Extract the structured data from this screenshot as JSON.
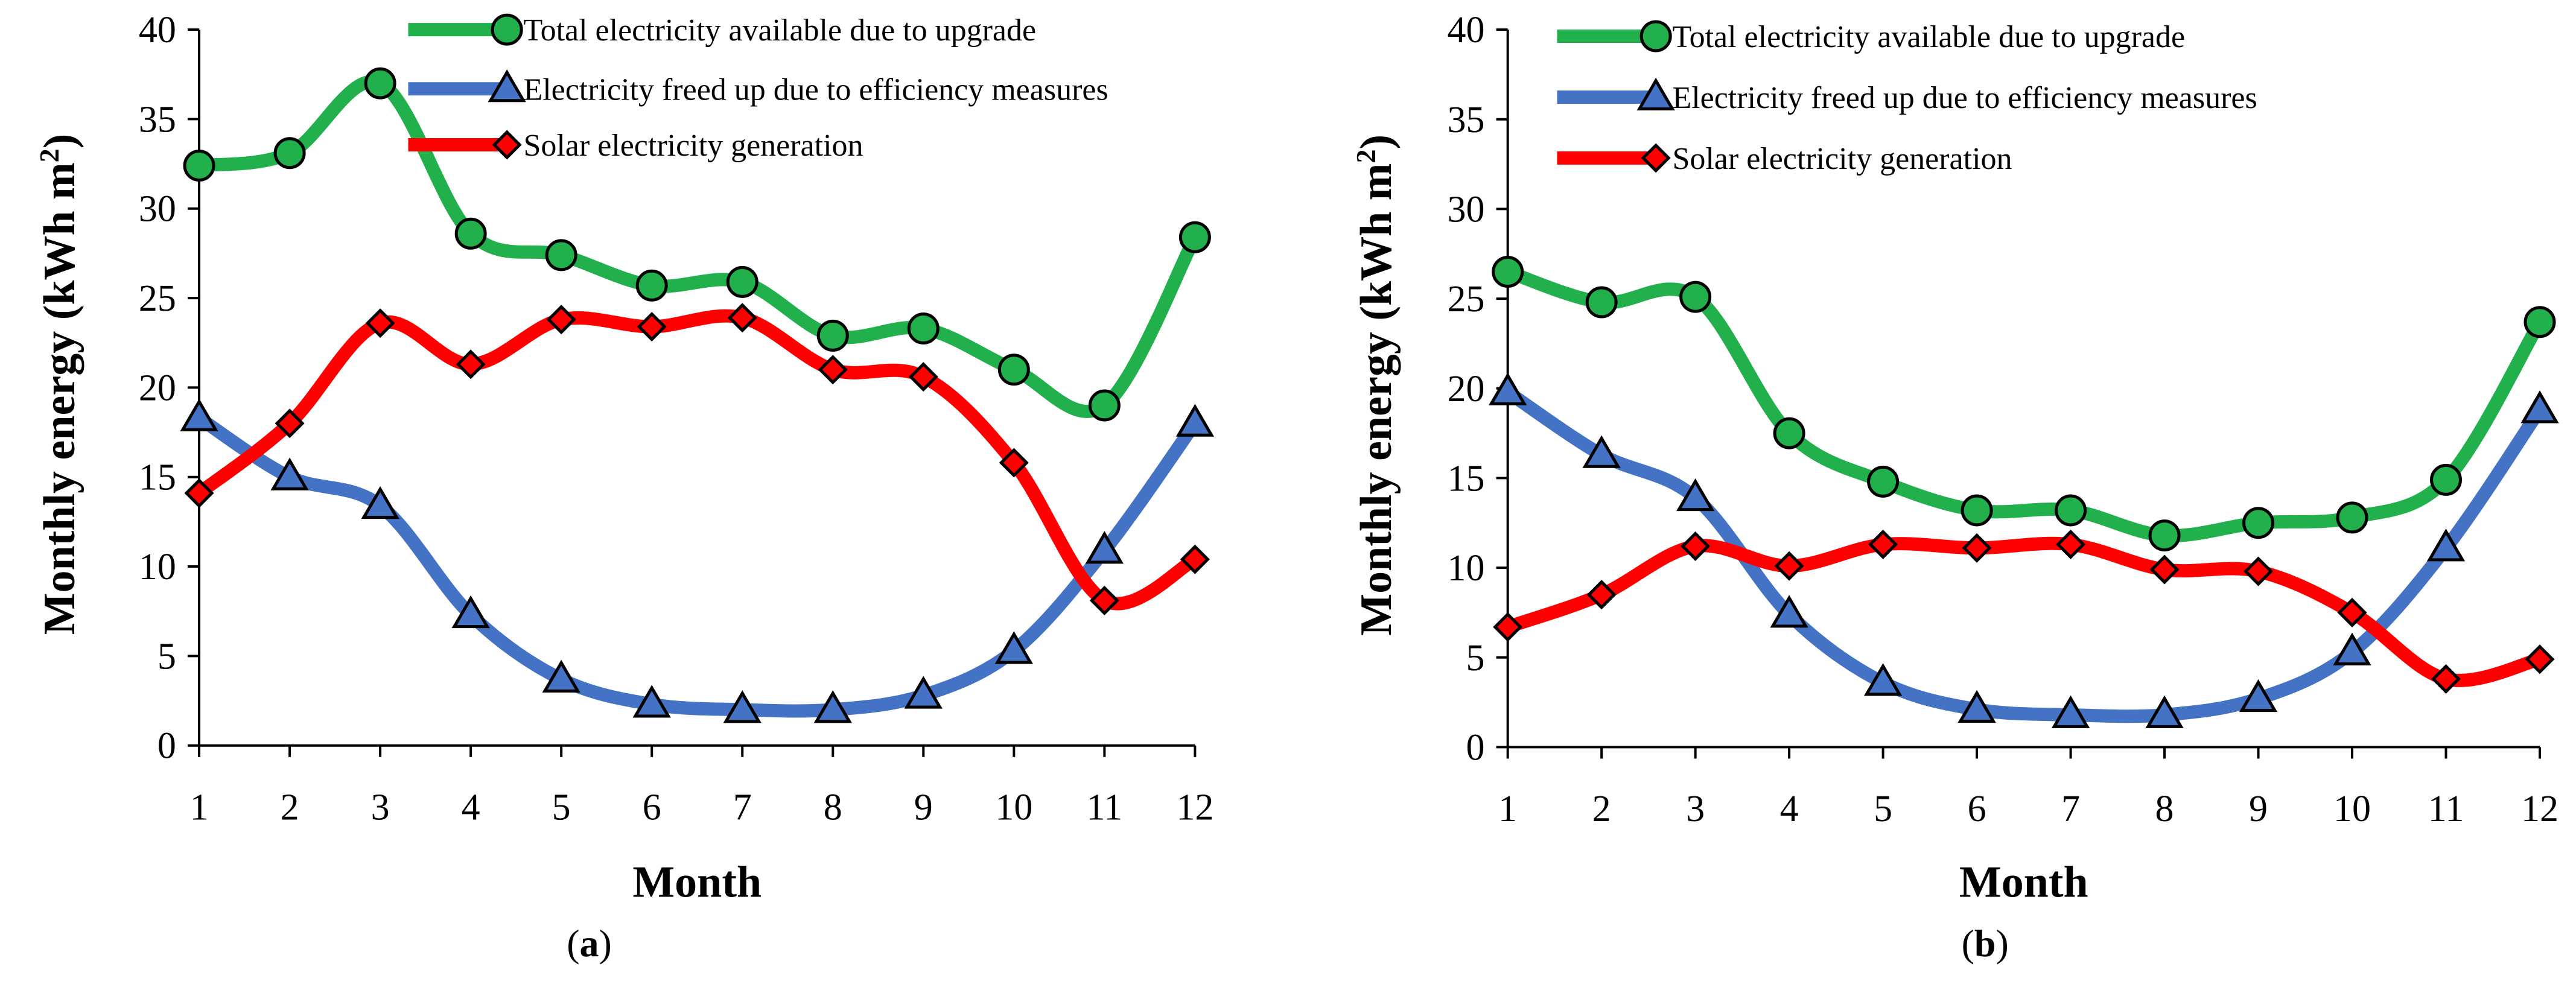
{
  "chart_data": [
    {
      "type": "line",
      "panel": "a",
      "caption_open": "(",
      "caption_letter": "a",
      "caption_close": ")",
      "xlabel": "Month",
      "ylabel": "Monthly energy (kWh m",
      "ylabel_sup": "2",
      "ylabel_close": ")",
      "ylim": [
        0,
        40
      ],
      "yticks": [
        0,
        5,
        10,
        15,
        20,
        25,
        30,
        35,
        40
      ],
      "x": [
        1,
        2,
        3,
        4,
        5,
        6,
        7,
        8,
        9,
        10,
        11,
        12
      ],
      "legend_position": "top-center",
      "series": [
        {
          "name": "Total electricity available due to upgrade",
          "color": "#21b04b",
          "marker": "circle",
          "values": [
            32.4,
            33.1,
            37.0,
            28.6,
            27.4,
            25.7,
            25.9,
            22.9,
            23.3,
            21.0,
            19.0,
            28.4
          ]
        },
        {
          "name": "Electricity freed up due to efficiency measures",
          "color": "#4472c4",
          "marker": "triangle",
          "values": [
            18.3,
            15.0,
            13.4,
            7.3,
            3.7,
            2.3,
            2.0,
            2.0,
            2.8,
            5.3,
            10.9,
            18.0
          ]
        },
        {
          "name": "Solar electricity generation",
          "color": "#ff0000",
          "marker": "diamond",
          "values": [
            14.1,
            18.0,
            23.6,
            21.3,
            23.8,
            23.4,
            23.9,
            21.0,
            20.6,
            15.8,
            8.1,
            10.4
          ]
        }
      ]
    },
    {
      "type": "line",
      "panel": "b",
      "caption_open": "(",
      "caption_letter": "b",
      "caption_close": ")",
      "xlabel": "Month",
      "ylabel": "Monthly energy (kWh m",
      "ylabel_sup": "2",
      "ylabel_close": ")",
      "ylim": [
        0,
        40
      ],
      "yticks": [
        0,
        5,
        10,
        15,
        20,
        25,
        30,
        35,
        40
      ],
      "x": [
        1,
        2,
        3,
        4,
        5,
        6,
        7,
        8,
        9,
        10,
        11,
        12
      ],
      "legend_position": "top-center",
      "series": [
        {
          "name": "Total electricity available due to upgrade",
          "color": "#21b04b",
          "marker": "circle",
          "values": [
            26.5,
            24.8,
            25.1,
            17.5,
            14.8,
            13.2,
            13.2,
            11.8,
            12.5,
            12.8,
            14.9,
            23.7
          ]
        },
        {
          "name": "Electricity freed up due to efficiency measures",
          "color": "#4472c4",
          "marker": "triangle",
          "values": [
            19.8,
            16.3,
            13.9,
            7.4,
            3.6,
            2.1,
            1.8,
            1.8,
            2.7,
            5.3,
            11.1,
            18.8
          ]
        },
        {
          "name": "Solar electricity generation",
          "color": "#ff0000",
          "marker": "diamond",
          "values": [
            6.7,
            8.5,
            11.2,
            10.1,
            11.3,
            11.1,
            11.3,
            9.9,
            9.8,
            7.5,
            3.8,
            4.9
          ]
        }
      ]
    }
  ]
}
